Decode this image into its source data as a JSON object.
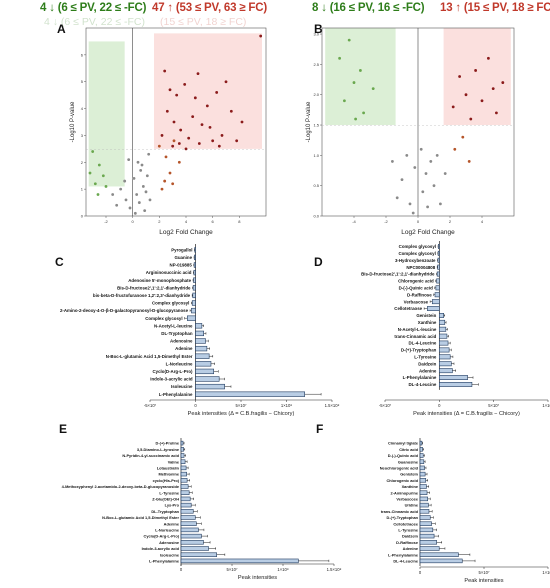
{
  "headers": {
    "a_down": "4 ↓ (6 ≤ PV, 22 ≤ -FC)",
    "a_up": "47 ↑ (53 ≤ PV, 63 ≥ FC)",
    "a_ghost_down": "4 ↓ (6 ≤ PV, 22 ≤ -FC)",
    "a_ghost_up": "(15 ≤ PV, 18 ≥ FC)",
    "b_down": "8 ↓ (16 ≤ PV, 16 ≤ -FC)",
    "b_up": "13 ↑ (15 ≤ PV, 18 ≥ FC)"
  },
  "panels": {
    "a": "A",
    "b": "B",
    "c": "C",
    "d": "D",
    "e": "E",
    "f": "F"
  },
  "colors": {
    "green_box": "#dcefd6",
    "red_box": "#fbe0de",
    "bar_fill": "#b9cde4",
    "bar_stroke": "#1f3a5f",
    "green_text": "#2e7d1a",
    "red_text": "#c0392b"
  },
  "chart_data": [
    {
      "type": "scatter",
      "panel": "A",
      "ylabel": "-Log10 P-value",
      "xlabel": "Log2 Fold Change",
      "xlim": [
        -3.5,
        10
      ],
      "ylim": [
        0,
        7
      ],
      "x_ticks": [
        "-2",
        "0",
        "2",
        "4",
        "6",
        "8"
      ],
      "y_ticks": [
        "0",
        "1",
        "2",
        "3",
        "4",
        "5",
        "6"
      ],
      "series": [
        {
          "points": [
            [
              -0.2,
              0.3
            ],
            [
              0.3,
              0.8
            ],
            [
              0.5,
              0.5
            ],
            [
              0.8,
              1.1
            ],
            [
              -0.5,
              0.6
            ],
            [
              0.1,
              1.4
            ],
            [
              0.6,
              1.7
            ],
            [
              1.0,
              0.9
            ],
            [
              -0.9,
              1.0
            ],
            [
              -1.2,
              0.4
            ],
            [
              0.9,
              0.2
            ],
            [
              0.4,
              2.0
            ],
            [
              1.1,
              1.5
            ],
            [
              -0.6,
              1.3
            ],
            [
              0.2,
              0.1
            ],
            [
              1.3,
              0.6
            ],
            [
              -0.3,
              2.1
            ],
            [
              0.7,
              1.9
            ],
            [
              1.2,
              2.3
            ],
            [
              -1.5,
              0.8
            ]
          ]
        },
        {
          "points": [
            [
              -2.8,
              1.2
            ],
            [
              -2.5,
              1.9
            ],
            [
              -2.2,
              1.5
            ],
            [
              -3.0,
              2.4
            ],
            [
              -2.0,
              1.1
            ],
            [
              -2.6,
              0.8
            ],
            [
              -3.2,
              1.6
            ]
          ]
        },
        {
          "points": [
            [
              2.2,
              1.0
            ],
            [
              2.5,
              2.2
            ],
            [
              2.8,
              1.6
            ],
            [
              3.1,
              2.8
            ],
            [
              2.4,
              1.3
            ],
            [
              3.5,
              2.0
            ],
            [
              2.0,
              2.6
            ],
            [
              3.0,
              1.2
            ]
          ]
        },
        {
          "points": [
            [
              2.2,
              3.0
            ],
            [
              2.6,
              3.9
            ],
            [
              3.0,
              2.6
            ],
            [
              3.3,
              4.5
            ],
            [
              3.6,
              3.2
            ],
            [
              3.9,
              4.9
            ],
            [
              4.2,
              2.9
            ],
            [
              4.5,
              3.7
            ],
            [
              4.9,
              5.3
            ],
            [
              5.2,
              3.4
            ],
            [
              5.6,
              4.1
            ],
            [
              6.0,
              2.8
            ],
            [
              6.3,
              4.6
            ],
            [
              6.7,
              3.0
            ],
            [
              7.0,
              5.0
            ],
            [
              7.4,
              3.9
            ],
            [
              2.4,
              5.4
            ],
            [
              3.1,
              3.5
            ],
            [
              4.0,
              2.5
            ],
            [
              5.0,
              2.7
            ],
            [
              5.8,
              3.3
            ],
            [
              6.5,
              2.6
            ],
            [
              7.8,
              2.8
            ],
            [
              8.2,
              3.5
            ],
            [
              9.6,
              6.7
            ],
            [
              3.5,
              2.7
            ],
            [
              4.7,
              4.4
            ],
            [
              2.8,
              4.7
            ]
          ]
        }
      ]
    },
    {
      "type": "scatter",
      "panel": "B",
      "ylabel": "-Log10 P-value",
      "xlabel": "Log2 Fold Change",
      "xlim": [
        -6,
        6
      ],
      "ylim": [
        0,
        3.1
      ],
      "x_ticks": [
        "-4",
        "-2",
        "0",
        "2",
        "4"
      ],
      "y_ticks": [
        "0.0",
        "0.5",
        "1.0",
        "1.5",
        "2.0",
        "2.5",
        "3.0"
      ],
      "series": [
        {
          "points": [
            [
              -0.5,
              0.2
            ],
            [
              0.3,
              0.4
            ],
            [
              0.6,
              0.15
            ],
            [
              -1.0,
              0.6
            ],
            [
              1.0,
              0.5
            ],
            [
              -0.2,
              0.8
            ],
            [
              0.8,
              0.9
            ],
            [
              -1.3,
              0.3
            ],
            [
              1.4,
              0.2
            ],
            [
              -0.7,
              1.0
            ],
            [
              0.2,
              1.1
            ],
            [
              1.2,
              1.0
            ],
            [
              -1.6,
              0.9
            ],
            [
              0.5,
              0.7
            ],
            [
              -0.3,
              0.05
            ],
            [
              1.7,
              0.7
            ]
          ]
        },
        {
          "points": [
            [
              -4.6,
              1.9
            ],
            [
              -4.0,
              2.2
            ],
            [
              -3.4,
              1.7
            ],
            [
              -4.9,
              2.6
            ],
            [
              -3.9,
              1.6
            ],
            [
              -2.8,
              2.1
            ],
            [
              -4.3,
              2.9
            ],
            [
              -3.6,
              2.4
            ]
          ]
        },
        {
          "points": [
            [
              2.3,
              1.1
            ],
            [
              2.8,
              1.3
            ],
            [
              3.2,
              0.9
            ]
          ]
        },
        {
          "points": [
            [
              2.2,
              1.8
            ],
            [
              3.0,
              2.0
            ],
            [
              3.6,
              2.4
            ],
            [
              4.0,
              1.9
            ],
            [
              4.4,
              2.6
            ],
            [
              4.9,
              1.7
            ],
            [
              5.3,
              2.2
            ],
            [
              3.3,
              1.6
            ],
            [
              4.7,
              2.1
            ],
            [
              2.6,
              2.3
            ]
          ]
        }
      ]
    },
    {
      "type": "bar",
      "panel": "C",
      "orientation": "horizontal",
      "xlabel": "Peak intensities (Δ = C.B.fragilis − Chicory)",
      "xlim": [
        -50000000,
        150000000
      ],
      "x_ticks": [
        "-5×10⁷",
        "0",
        "5×10⁷",
        "1×10⁸",
        "1.5×10⁸"
      ],
      "categories": [
        "Pyrogallol",
        "Guanine",
        "NP-019885",
        "Argininosuccinic acid",
        "Adenosine 5'-monophosphate",
        "Bis-D-fructose2',1':2,1'-dianhydride",
        "bis-beta-D-fructofuranose 1,2':2,3'-dianhydride",
        "Complex glycosyl",
        "2-Amino-2-deoxy-4-O-β-D-galactopyranosyl-D-glucopyranose",
        "Complex glycosyl",
        "N-Acetyl-L-leucine",
        "DL-Tryptophan",
        "Adenosine",
        "Adenine",
        "N-Boc-L-glutamic Acid 1,5-Dimethyl Ester",
        "L-Norleucine",
        "Cyclo(D-Arg-L-Pro)",
        "Indole-3-acrylic acid",
        "Isoleucine",
        "L-Phenylalanine"
      ],
      "values": [
        -800000,
        -1200000,
        -1500000,
        -1800000,
        -2200000,
        -2600000,
        -3000000,
        -3600000,
        -4500000,
        -9000000,
        7000000,
        9000000,
        11000000,
        12500000,
        15000000,
        17000000,
        20000000,
        26000000,
        32000000,
        120000000
      ],
      "errors": [
        300000,
        400000,
        400000,
        500000,
        500000,
        700000,
        700000,
        1000000,
        1500000,
        3000000,
        2000000,
        2500000,
        3000000,
        3000000,
        4000000,
        4000000,
        5000000,
        6000000,
        7000000,
        18000000
      ]
    },
    {
      "type": "bar",
      "panel": "D",
      "orientation": "horizontal",
      "xlabel": "Peak intensities (Δ = C.B.fragilis − Chicory)",
      "xlim": [
        -50000000,
        100000000
      ],
      "x_ticks": [
        "-5×10⁷",
        "0",
        "5×10⁷",
        "1×10⁸"
      ],
      "categories": [
        "Complex glycosyl",
        "Complex glycosyl",
        "3-Hydroxybenzoate",
        "NPC00004808",
        "Bis-D-fructose2',1':2,1'-dianhydride",
        "Chlorogenic acid",
        "D-(-)-Quinic acid",
        "D-Raffinose",
        "Verbascose",
        "Cellotetraose",
        "Genistein",
        "Xanthine",
        "N-Acetyl-L-leucine",
        "trans-Cinnamic acid",
        "DL-4-Leucine",
        "D-(+)-Tryptophan",
        "L-Tyrosine",
        "Daidzein",
        "Adenine",
        "L-Phenylalanine",
        "DL-4-Leucine"
      ],
      "values": [
        -900000,
        -1100000,
        -1300000,
        -1600000,
        -2000000,
        -2500000,
        -3200000,
        -4000000,
        -6500000,
        -11000000,
        4000000,
        5000000,
        6000000,
        7000000,
        8000000,
        9000000,
        10000000,
        11000000,
        12000000,
        26000000,
        30000000
      ],
      "errors": [
        300000,
        300000,
        400000,
        400000,
        600000,
        800000,
        1000000,
        1200000,
        2000000,
        3000000,
        1000000,
        1200000,
        1500000,
        1500000,
        2000000,
        2000000,
        2500000,
        2500000,
        3000000,
        5000000,
        6000000
      ]
    },
    {
      "type": "bar",
      "panel": "E",
      "orientation": "horizontal",
      "xlabel": "Peak intensities",
      "xlim": [
        0,
        150000000
      ],
      "x_ticks": [
        "0",
        "5×10⁷",
        "1×10⁸",
        "1.5×10⁸"
      ],
      "categories": [
        "D-(+)-Proline",
        "3,5-Diamino-L-tyrosine",
        "N-Pyridin-4-yl-succinamic acid",
        "Valine",
        "Lotaustralin",
        "Methionine",
        "cyclo(His-Pro)",
        "4-Methoxyphenyl 2-acetamido-2-deoxy-beta-D-glucopyranoside",
        "L-Tyrosine",
        "Z-Glu(OEt)-OH",
        "Lys-Pro",
        "DL-Tryptophan",
        "N-Boc-L-glutamic Acid 1,5-Dimethyl Ester",
        "Adenine",
        "L-Norleucine",
        "Cyclo(D-Arg-L-Pro)",
        "Adenosine",
        "Indole-3-acrylic acid",
        "Isoleucine",
        "L-Phenylalanine"
      ],
      "values": [
        2000000,
        2500000,
        3000000,
        4000000,
        5000000,
        5500000,
        6000000,
        7000000,
        8000000,
        9000000,
        10000000,
        12000000,
        14000000,
        15000000,
        17000000,
        20000000,
        22000000,
        27000000,
        35000000,
        115000000
      ],
      "errors": [
        1000000,
        1200000,
        1500000,
        2000000,
        2000000,
        2500000,
        2500000,
        3000000,
        3000000,
        3500000,
        4000000,
        4000000,
        5000000,
        5000000,
        5500000,
        6000000,
        6500000,
        7000000,
        8000000,
        30000000
      ]
    },
    {
      "type": "bar",
      "panel": "F",
      "orientation": "horizontal",
      "xlabel": "Peak intensities",
      "xlim": [
        0,
        100000000
      ],
      "x_ticks": [
        "0",
        "5×10⁷",
        "1×10⁸"
      ],
      "categories": [
        "Cinnamyl tiglate",
        "Citric acid",
        "D-(-)-Quinic acid",
        "Guanosine",
        "Neochlorogenic acid",
        "Genistein",
        "Chlorogenic acid",
        "Xanthine",
        "2-Aminopurine",
        "Verbascose",
        "Uridine",
        "trans-Cinnamic acid",
        "D-(+)-Tryptophan",
        "Cellotetraose",
        "L-Tyrosine",
        "Daidzein",
        "D-Raffinose",
        "Adenine",
        "L-Phenylalanine",
        "DL-4-Leucine"
      ],
      "values": [
        1500000,
        2000000,
        2500000,
        3000000,
        3500000,
        4000000,
        4500000,
        5000000,
        5500000,
        6000000,
        6500000,
        7000000,
        8000000,
        9000000,
        10000000,
        11000000,
        13000000,
        15000000,
        30000000,
        33000000
      ],
      "errors": [
        600000,
        800000,
        1000000,
        1000000,
        1200000,
        1500000,
        1500000,
        1800000,
        2000000,
        2000000,
        2200000,
        2500000,
        2500000,
        3000000,
        3000000,
        3500000,
        4000000,
        4500000,
        9000000,
        10000000
      ]
    }
  ]
}
